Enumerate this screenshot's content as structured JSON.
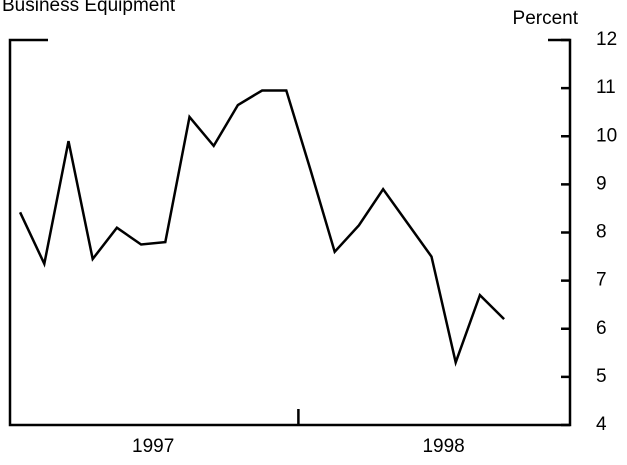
{
  "chart_data": {
    "type": "line",
    "title": "Business Equipment",
    "y_axis_label": "Percent",
    "categories": [
      null,
      null,
      null,
      null,
      null,
      null,
      null,
      null,
      null,
      null,
      null,
      null,
      null,
      null,
      null,
      null,
      null,
      null,
      null,
      null,
      null
    ],
    "year_labels": [
      "1997",
      "1998"
    ],
    "values": [
      8.42,
      7.35,
      9.9,
      7.45,
      8.1,
      7.75,
      7.8,
      10.4,
      9.8,
      10.65,
      10.95,
      10.95,
      9.3,
      7.6,
      8.15,
      8.9,
      8.2,
      7.5,
      5.3,
      6.7,
      6.2
    ],
    "color": "#000000",
    "ylim": [
      4,
      12
    ],
    "yticks": [
      4,
      5,
      6,
      7,
      8,
      9,
      10,
      11,
      12
    ]
  }
}
